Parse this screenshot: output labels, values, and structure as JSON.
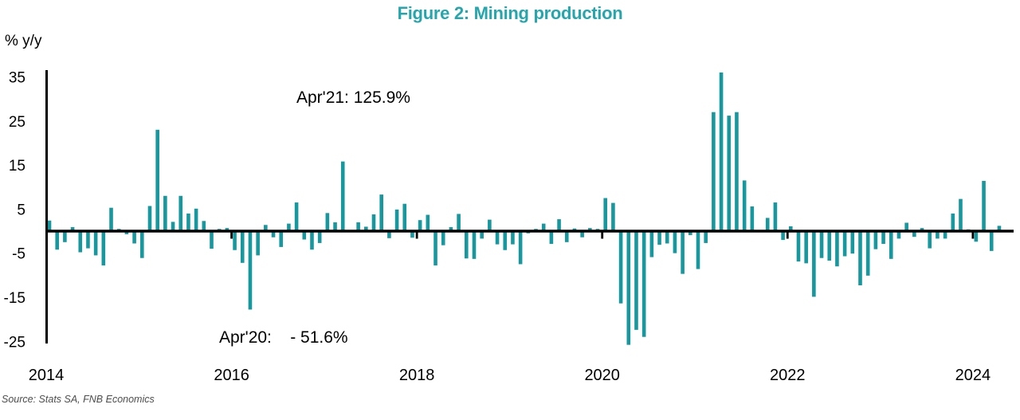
{
  "title": "Figure 2: Mining production",
  "ylabel_unit": "% y/y",
  "source": "Source: Stats SA, FNB Economics",
  "annotations": {
    "apr21": "Apr'21: 125.9%",
    "apr20": "Apr'20:    - 51.6%"
  },
  "colors": {
    "bars": "#17989E",
    "title": "#25A6AC",
    "axis": "#000000",
    "text": "#000000",
    "source": "#4D4D4D"
  },
  "chart_data": {
    "type": "bar",
    "title": "Figure 2: Mining production",
    "ylabel": "% y/y",
    "unit": "percent year-on-year",
    "ylim": [
      -25,
      35
    ],
    "yticks": [
      35,
      25,
      15,
      5,
      -5,
      -15,
      -25
    ],
    "xtick_years": [
      2014,
      2016,
      2018,
      2020,
      2022,
      2024
    ],
    "start_month": "2014-01",
    "frequency": "monthly",
    "grid": "off",
    "legend": "none",
    "clipped_points": [
      {
        "month": "2020-04",
        "actual": -51.6,
        "note": "bar clipped at bottom of plot"
      },
      {
        "month": "2021-04",
        "actual": 125.9,
        "note": "bar clipped at top of plot"
      }
    ],
    "values": [
      2.4,
      -4.2,
      -2.5,
      0.9,
      -4.8,
      -3.9,
      -5.5,
      -7.8,
      5.3,
      0.5,
      -0.7,
      -2.8,
      -6.1,
      5.7,
      23.0,
      8.0,
      2.1,
      8.0,
      4.0,
      5.1,
      2.3,
      -4.0,
      0.5,
      0.7,
      -4.3,
      -7.2,
      -17.8,
      -5.5,
      1.4,
      -1.4,
      -3.6,
      1.7,
      6.5,
      -1.9,
      -4.2,
      -2.7,
      4.1,
      2.0,
      15.8,
      0.0,
      2.0,
      1.0,
      3.8,
      8.3,
      -1.6,
      4.9,
      6.2,
      -1.5,
      2.5,
      3.7,
      -7.8,
      -3.2,
      0.9,
      3.9,
      -6.2,
      -6.3,
      -1.7,
      2.6,
      -3.0,
      -4.3,
      -3.0,
      -7.5,
      -0.5,
      0.5,
      1.7,
      -2.9,
      2.7,
      -2.5,
      0.6,
      -1.4,
      0.7,
      0.5,
      7.5,
      6.4,
      -16.4,
      -51.6,
      -22.4,
      -24.0,
      -5.9,
      -3.1,
      -2.8,
      -5.0,
      -9.7,
      -0.9,
      -8.6,
      -2.7,
      27.0,
      125.9,
      26.2,
      27.0,
      11.5,
      5.6,
      0.0,
      3.0,
      6.5,
      -2.0,
      1.1,
      -6.9,
      -7.3,
      -14.9,
      -6.1,
      -6.7,
      -8.0,
      -5.7,
      -5.1,
      -12.3,
      -10.1,
      -4.1,
      -2.9,
      -6.3,
      -1.7,
      1.9,
      -1.3,
      0.7,
      -3.9,
      -1.7,
      -1.7,
      4.0,
      7.3,
      0.4,
      -2.4,
      11.4,
      -4.5,
      1.2
    ]
  }
}
